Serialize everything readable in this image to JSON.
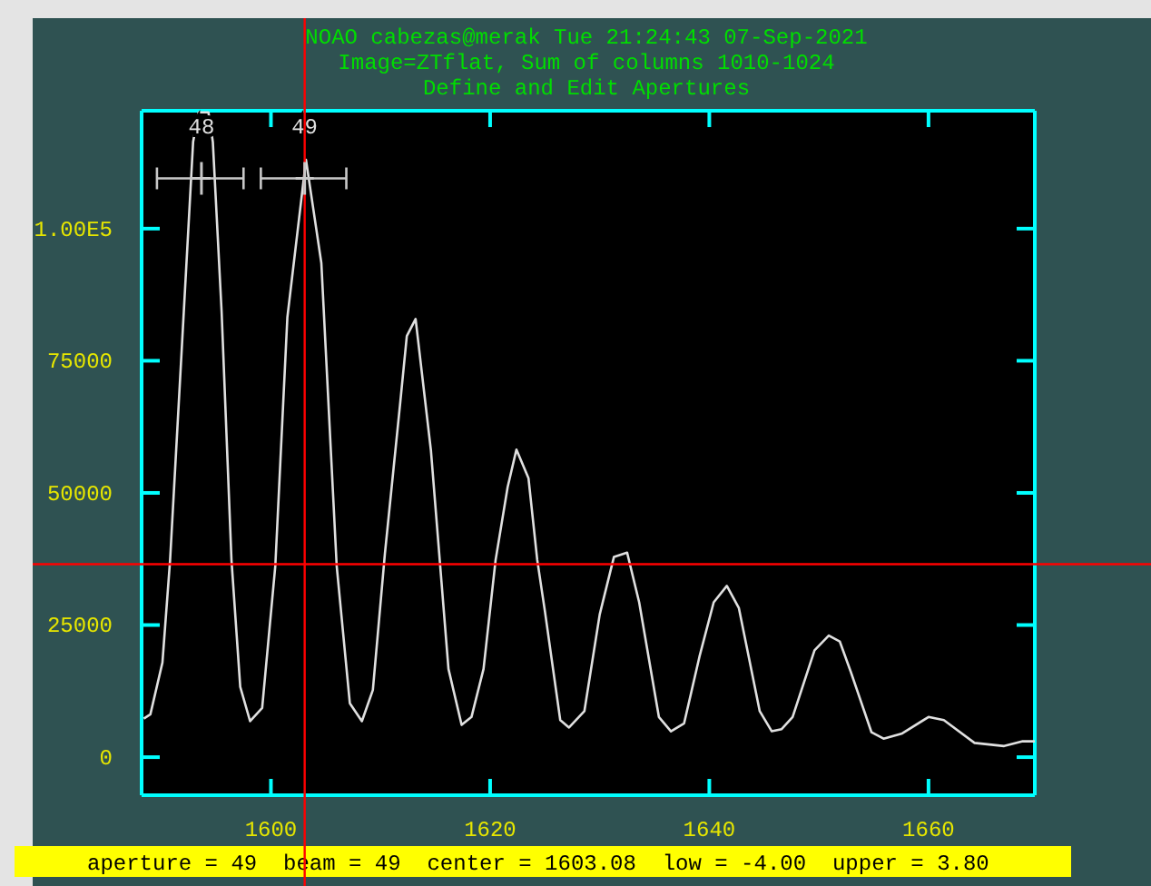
{
  "chart_data": {
    "type": "line",
    "title": "NOAO cabezas@merak Tue 21:24:43 07-Sep-2021",
    "subtitle": "Image=ZTflat, Sum of columns 1010-1024",
    "annotations": [
      "Define and Edit Apertures",
      "aperture = 49  beam = 49  center = 1603.08  low = -4.00  upper = 3.80",
      {
        "text": "48",
        "x": 1593.66,
        "y": 118000
      },
      {
        "text": "49",
        "x": 1603.08,
        "y": 118000
      }
    ],
    "x": [
      1588.4,
      1589.0,
      1590.1,
      1590.8,
      1591.9,
      1592.9,
      1593.4,
      1594.3,
      1594.7,
      1595.5,
      1596.4,
      1597.2,
      1598.1,
      1599.2,
      1600.4,
      1601.5,
      1603.2,
      1604.6,
      1606.0,
      1607.2,
      1608.3,
      1609.3,
      1610.4,
      1611.8,
      1612.4,
      1613.2,
      1614.6,
      1616.2,
      1617.4,
      1618.3,
      1619.4,
      1620.5,
      1621.6,
      1622.4,
      1623.5,
      1624.3,
      1625.0,
      1626.4,
      1627.2,
      1628.6,
      1630.0,
      1631.3,
      1632.5,
      1633.6,
      1635.4,
      1636.5,
      1637.7,
      1639.1,
      1640.4,
      1641.6,
      1642.7,
      1644.6,
      1645.7,
      1646.6,
      1647.6,
      1649.6,
      1650.9,
      1651.9,
      1652.9,
      1654.8,
      1655.9,
      1657.6,
      1660.0,
      1661.4,
      1664.2,
      1666.9,
      1668.6,
      1669.7
    ],
    "series": [
      {
        "color": "#e0e0e0",
        "values": [
          7300,
          8100,
          17900,
          37300,
          78600,
          116400,
          122000,
          122000,
          116400,
          84300,
          37300,
          13300,
          6800,
          9300,
          36200,
          83200,
          113000,
          93500,
          36200,
          10200,
          6800,
          12700,
          38500,
          67100,
          79700,
          82900,
          58000,
          16700,
          6100,
          7600,
          16700,
          37300,
          51100,
          58200,
          52800,
          37300,
          27600,
          7000,
          5600,
          8700,
          27000,
          37900,
          38700,
          29300,
          7600,
          4900,
          6400,
          19000,
          29300,
          32400,
          28200,
          8700,
          4900,
          5300,
          7600,
          20200,
          23000,
          21900,
          16200,
          4700,
          3500,
          4500,
          7600,
          7000,
          2700,
          2100,
          3000,
          3000
        ]
      },
      {
        "type": "scatter",
        "marker": "cross",
        "color": "#c8c8c8",
        "x": [
          1593.66,
          1603.08
        ],
        "values": [
          109500,
          109500
        ],
        "xerrors": [
          [
            1589.6,
            1597.5
          ],
          [
            1599.08,
            1606.88
          ]
        ]
      }
    ],
    "xlim": [
      1588.2,
      1669.7
    ],
    "ylim": [
      -7200,
      122300
    ],
    "xticks": [
      1600,
      1620,
      1640,
      1660
    ],
    "yticks": [
      0,
      25000,
      50000,
      75000,
      {
        "value": 100000,
        "label": "1.00E5"
      }
    ],
    "ref_lines": [
      {
        "axis": "x",
        "value": 1603.08,
        "color": "#ff0000"
      },
      {
        "axis": "y",
        "value": 36500,
        "color": "#ff0000"
      }
    ],
    "marker": "none",
    "line_style": "solid"
  }
}
